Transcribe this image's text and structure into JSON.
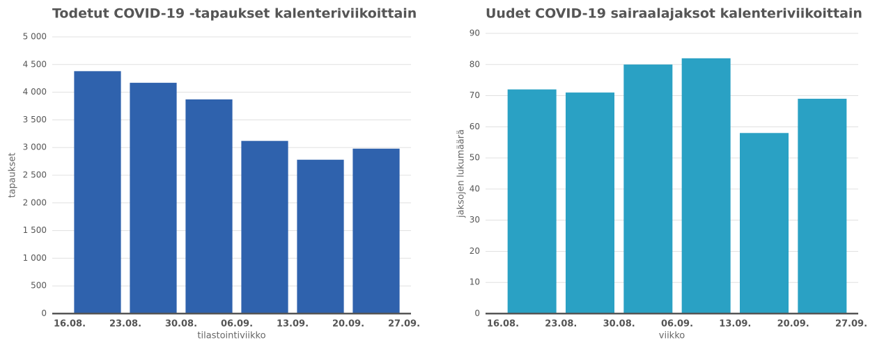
{
  "chart_data": [
    {
      "type": "bar",
      "title": "Todetut COVID-19 -tapaukset kalenteriviikoittain",
      "categories": [
        null,
        null,
        null,
        null,
        null,
        null
      ],
      "values": [
        4380,
        4170,
        3870,
        3120,
        2780,
        2980
      ],
      "color": "#2f62ad",
      "xticks": [
        "16.08.",
        "23.08.",
        "30.08.",
        "06.09.",
        "13.09.",
        "20.09.",
        "27.09."
      ],
      "xlabel": "tilastointiviikko",
      "ylabel": "tapaukset",
      "ylim": [
        0,
        5000
      ],
      "yticks": [
        0,
        500,
        {
          "value": 1000,
          "label": "1 000"
        },
        {
          "value": 1500,
          "label": "1 500"
        },
        {
          "value": 2000,
          "label": "2 000"
        },
        {
          "value": 2500,
          "label": "2 500"
        },
        {
          "value": 3000,
          "label": "3 000"
        },
        {
          "value": 3500,
          "label": "3 500"
        },
        {
          "value": 4000,
          "label": "4 000"
        },
        {
          "value": 4500,
          "label": "4 500"
        },
        {
          "value": 5000,
          "label": "5 000"
        }
      ],
      "grid": true
    },
    {
      "type": "bar",
      "title": "Uudet COVID-19 sairaalajaksot kalenteriviikoittain",
      "categories": [
        null,
        null,
        null,
        null,
        null,
        null
      ],
      "values": [
        72,
        71,
        80,
        82,
        58,
        69
      ],
      "color": "#2aa1c4",
      "xticks": [
        "16.08.",
        "23.08.",
        "30.08.",
        "06.09.",
        "13.09.",
        "20.09.",
        "27.09."
      ],
      "xlabel": "viikko",
      "ylabel": "jaksojen lukumäärä",
      "ylim": [
        0,
        90
      ],
      "yticks": [
        0,
        10,
        20,
        30,
        40,
        50,
        60,
        70,
        80,
        90
      ],
      "grid": true
    }
  ]
}
